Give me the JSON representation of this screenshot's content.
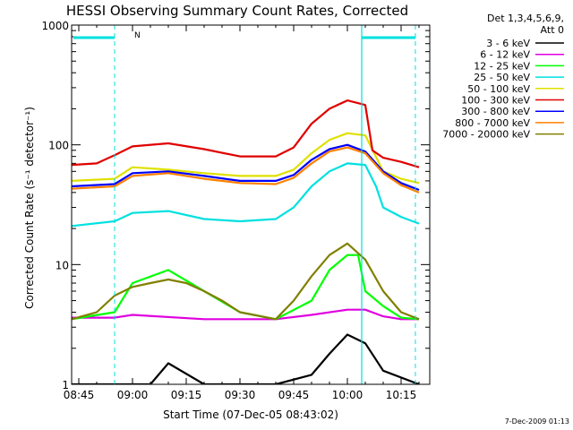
{
  "chart_data": {
    "type": "line",
    "title": "HESSI Observing Summary Count Rates, Corrected",
    "xlabel": "Start Time (07-Dec-05 08:43:02)",
    "ylabel": "Corrected Count Rate (s⁻¹ detector⁻¹)",
    "yscale": "log",
    "ylim": [
      1,
      1000
    ],
    "x_ticks": [
      "08:45",
      "09:00",
      "09:15",
      "09:30",
      "09:45",
      "10:00",
      "10:15"
    ],
    "y_ticks": [
      "1",
      "10",
      "100",
      "1000"
    ],
    "legend_placement": "right",
    "legend_header": [
      "Det 1,3,4,5,6,9,",
      "Att 0"
    ],
    "annotation_n": "N",
    "footer_date": "7-Dec-2009 01:13",
    "vertical_markers_time": [
      "08:55",
      "10:04",
      "10:19"
    ],
    "series": [
      {
        "name": "3 - 6 keV",
        "color": "#000000",
        "times": [
          "08:43",
          "09:05",
          "09:10",
          "09:20",
          "09:40",
          "09:50",
          "09:55",
          "10:00",
          "10:05",
          "10:10",
          "10:20"
        ],
        "values": [
          1,
          1,
          1.5,
          1,
          1,
          1.2,
          1.8,
          2.6,
          2.2,
          1.3,
          1
        ]
      },
      {
        "name": "6 - 12 keV",
        "color": "#e000e0",
        "times": [
          "08:43",
          "08:55",
          "09:00",
          "09:20",
          "09:40",
          "09:50",
          "10:00",
          "10:05",
          "10:10",
          "10:15",
          "10:20"
        ],
        "values": [
          3.6,
          3.6,
          3.8,
          3.5,
          3.5,
          3.8,
          4.2,
          4.2,
          3.7,
          3.5,
          3.5
        ]
      },
      {
        "name": "12 - 25 keV",
        "color": "#00ff00",
        "times": [
          "08:43",
          "08:55",
          "09:00",
          "09:10",
          "09:20",
          "09:30",
          "09:40",
          "09:50",
          "09:55",
          "10:00",
          "10:03",
          "10:05",
          "10:10",
          "10:15",
          "10:20"
        ],
        "values": [
          3.5,
          4,
          7,
          9,
          6,
          4,
          3.5,
          5,
          9,
          12,
          12,
          6,
          4.5,
          3.6,
          3.5
        ]
      },
      {
        "name": "25 - 50 keV",
        "color": "#00e0e0",
        "times": [
          "08:43",
          "08:55",
          "09:00",
          "09:10",
          "09:20",
          "09:30",
          "09:40",
          "09:45",
          "09:50",
          "09:55",
          "10:00",
          "10:05",
          "10:08",
          "10:10",
          "10:15",
          "10:20"
        ],
        "values": [
          21,
          23,
          27,
          28,
          24,
          23,
          24,
          30,
          45,
          60,
          70,
          68,
          45,
          30,
          25,
          22
        ]
      },
      {
        "name": "50 - 100 keV",
        "color": "#e0e000",
        "times": [
          "08:43",
          "08:55",
          "09:00",
          "09:10",
          "09:20",
          "09:30",
          "09:40",
          "09:45",
          "09:50",
          "09:55",
          "10:00",
          "10:05",
          "10:10",
          "10:15",
          "10:20"
        ],
        "values": [
          50,
          52,
          65,
          62,
          58,
          55,
          55,
          62,
          85,
          110,
          125,
          120,
          60,
          52,
          48
        ]
      },
      {
        "name": "100 - 300 keV",
        "color": "#e00000",
        "times": [
          "08:43",
          "08:50",
          "08:55",
          "09:00",
          "09:10",
          "09:20",
          "09:30",
          "09:40",
          "09:45",
          "09:50",
          "09:55",
          "10:00",
          "10:05",
          "10:07",
          "10:10",
          "10:15",
          "10:20"
        ],
        "values": [
          68,
          70,
          82,
          97,
          103,
          92,
          80,
          80,
          95,
          150,
          200,
          235,
          215,
          90,
          78,
          72,
          65
        ]
      },
      {
        "name": "300 - 800 keV",
        "color": "#0000ff",
        "times": [
          "08:43",
          "08:55",
          "09:00",
          "09:10",
          "09:20",
          "09:30",
          "09:40",
          "09:45",
          "09:50",
          "09:55",
          "10:00",
          "10:05",
          "10:10",
          "10:15",
          "10:20"
        ],
        "values": [
          45,
          47,
          58,
          60,
          55,
          50,
          50,
          56,
          75,
          92,
          100,
          88,
          60,
          48,
          42
        ]
      },
      {
        "name": "800 - 7000 keV",
        "color": "#ff8000",
        "times": [
          "08:43",
          "08:55",
          "09:00",
          "09:10",
          "09:20",
          "09:30",
          "09:40",
          "09:45",
          "09:50",
          "09:55",
          "10:00",
          "10:05",
          "10:10",
          "10:15",
          "10:20"
        ],
        "values": [
          43,
          45,
          55,
          58,
          52,
          48,
          47,
          53,
          70,
          88,
          95,
          85,
          58,
          46,
          40
        ]
      },
      {
        "name": "7000 - 20000 keV",
        "color": "#808000",
        "times": [
          "08:43",
          "08:50",
          "08:55",
          "09:00",
          "09:05",
          "09:10",
          "09:15",
          "09:20",
          "09:25",
          "09:30",
          "09:40",
          "09:45",
          "09:50",
          "09:55",
          "10:00",
          "10:05",
          "10:10",
          "10:15",
          "10:20"
        ],
        "values": [
          3.5,
          4,
          5.5,
          6.5,
          7,
          7.5,
          7,
          6,
          5,
          4,
          3.5,
          5,
          8,
          12,
          15,
          11,
          6,
          4,
          3.5
        ]
      }
    ]
  }
}
